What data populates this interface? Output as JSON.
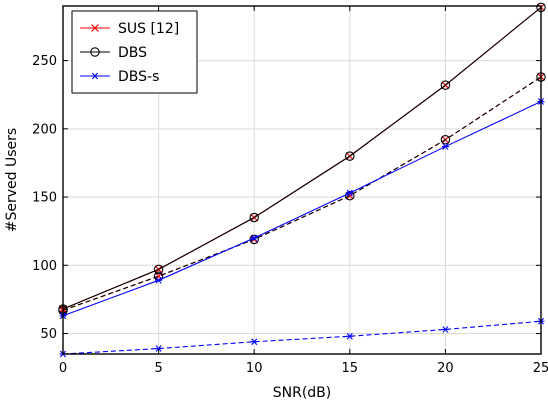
{
  "chart_data": {
    "type": "line",
    "title": "",
    "xlabel": "SNR(dB)",
    "ylabel": "#Served Users",
    "xlim": [
      0,
      25
    ],
    "ylim": [
      35,
      290
    ],
    "xticks": [
      0,
      5,
      10,
      15,
      20,
      25
    ],
    "yticks": [
      50,
      100,
      150,
      200,
      250
    ],
    "grid": true,
    "legend_position": "top-left",
    "legend": [
      {
        "name": "SUS [12]",
        "color": "#ff0000",
        "marker": "x"
      },
      {
        "name": "DBS",
        "color": "#000000",
        "marker": "o"
      },
      {
        "name": "DBS-s",
        "color": "#0000ff",
        "marker": "*"
      }
    ],
    "x": [
      0,
      5,
      10,
      15,
      20,
      25
    ],
    "series": [
      {
        "name": "SUS [12]",
        "style": "solid",
        "marker": "x",
        "color": "#ff0000",
        "values": [
          68,
          97,
          135,
          180,
          232,
          289
        ]
      },
      {
        "name": "SUS [12]",
        "style": "dashed",
        "marker": "x",
        "color": "#ff0000",
        "values": [
          67,
          92,
          119,
          151,
          192,
          238
        ]
      },
      {
        "name": "DBS",
        "style": "solid",
        "marker": "o",
        "color": "#000000",
        "values": [
          68,
          97,
          135,
          180,
          232,
          289
        ]
      },
      {
        "name": "DBS",
        "style": "dashed",
        "marker": "o",
        "color": "#000000",
        "values": [
          67,
          92,
          119,
          151,
          192,
          238
        ]
      },
      {
        "name": "DBS-s",
        "style": "solid",
        "marker": "*",
        "color": "#0000ff",
        "values": [
          63,
          89,
          120,
          153,
          187,
          220
        ]
      },
      {
        "name": "DBS-s",
        "style": "dashed",
        "marker": "*",
        "color": "#0000ff",
        "values": [
          35,
          39,
          44,
          48,
          53,
          59
        ]
      }
    ]
  }
}
